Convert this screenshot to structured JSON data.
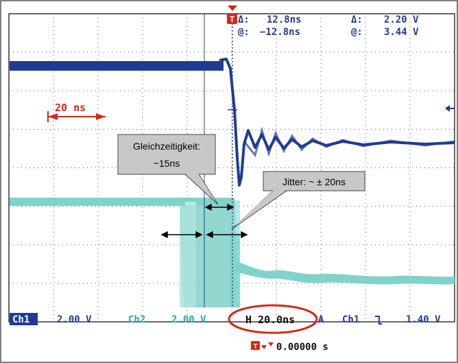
{
  "cursor": {
    "delta_symbol": "Δ:",
    "at_symbol": "@:",
    "time_delta": "12.8ns",
    "time_at": "−12.8ns",
    "volt_delta": "2.20 V",
    "volt_at": "3.44 V"
  },
  "scale_marker": {
    "label": "20 ns"
  },
  "callouts": {
    "simultaneity_line1": "Gleichzeitigkeit:",
    "simultaneity_line2": "~15ns",
    "jitter": "Jitter: ~ ± 20ns"
  },
  "status": {
    "ch1_badge": "Ch1",
    "ch1_scale": "2.00 V",
    "ch2_label": "Ch2",
    "ch2_scale": "2.00 V",
    "timebase": "H 20.0ns",
    "trigger_mode": "A",
    "trigger_source": "Ch1",
    "trigger_slope_glyph": "⌐",
    "trigger_level": "1.40 V",
    "trigger_position": "0.00000 s"
  },
  "colors": {
    "ch1": "#1f3c93",
    "ch2": "#7fd3cb",
    "marker": "#d12a1a",
    "cursor_line": "#1f3c93",
    "callout_fill": "#c8c8c8",
    "highlight_ellipse": "#d12a1a"
  },
  "icons": {
    "trigger_marker": "trigger-t-icon",
    "trigger_arrow": "trigger-arrow-icon",
    "offscreen_level": "level-arrow-icon"
  }
}
